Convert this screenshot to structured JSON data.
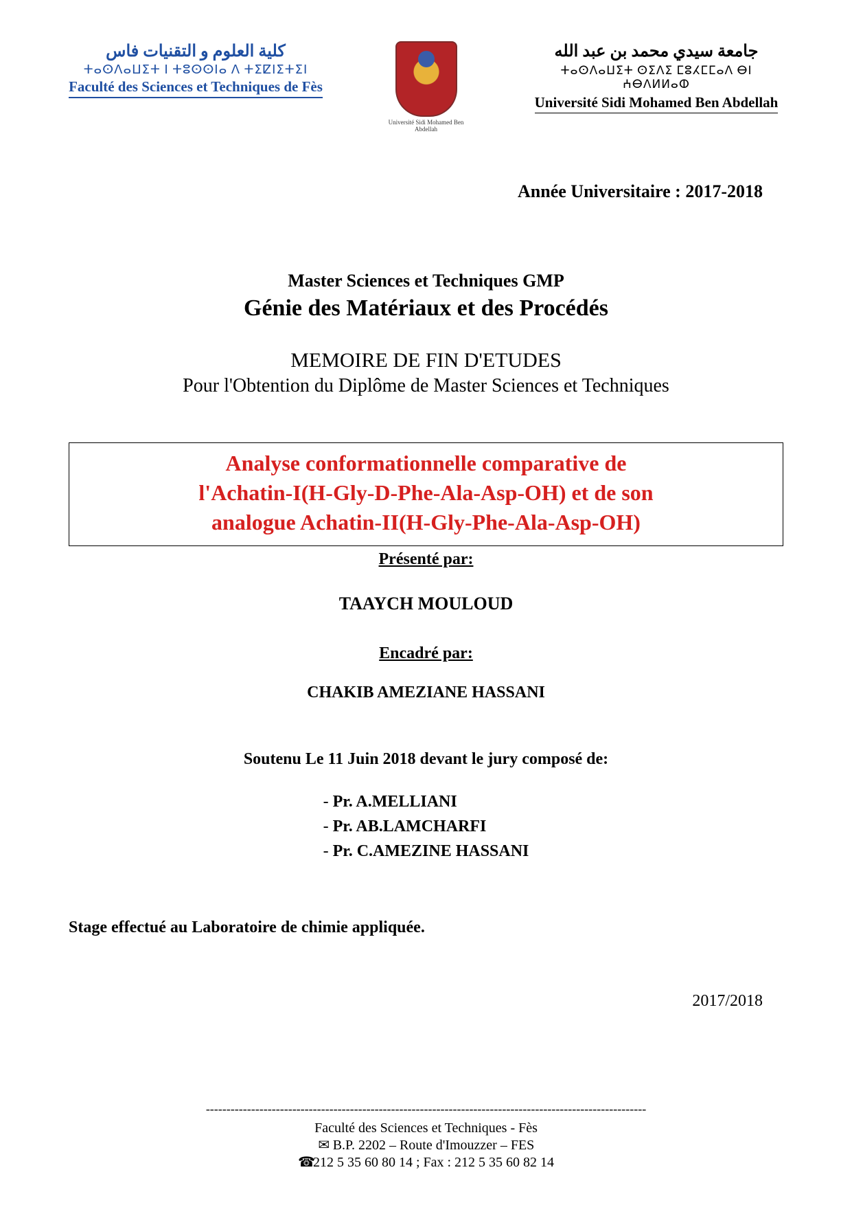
{
  "header": {
    "left": {
      "arabic": "كلية العلوم و التقنيات فاس",
      "tifinagh": "ⵜⴰⵙⴷⴰⵡⵉⵜ ⵏ ⵜⵓⵙⵙⵏⴰ ⴷ ⵜⵉⵇⵏⵉⵜⵉⵏ",
      "french": "Faculté des Sciences et Techniques de Fès"
    },
    "center_caption": "Université Sidi Mohamed Ben Abdellah",
    "right": {
      "arabic": "جامعة سيدي محمد بن عبد الله",
      "tifinagh": "ⵜⴰⵙⴷⴰⵡⵉⵜ ⵙⵉⴷⵉ ⵎⵓⵃⵎⵎⴰⴷ ⴱⵏ ⵄⴱⴷⵍⵍⴰⵀ",
      "french": "Université Sidi Mohamed Ben Abdellah"
    }
  },
  "academic_year": "Année Universitaire : 2017-2018",
  "program_line1": "Master Sciences et Techniques GMP",
  "program_line2": "Génie des Matériaux et des Procédés",
  "memoire_heading": "MEMOIRE DE FIN D'ETUDES",
  "obtention_line": "Pour l'Obtention du Diplôme de Master Sciences et Techniques",
  "thesis_title_line1": "Analyse conformationnelle  comparative de",
  "thesis_title_line2": "l'Achatin-I(H-Gly-D-Phe-Ala-Asp-OH) et de son",
  "thesis_title_line3": "analogue Achatin-II(H-Gly-Phe-Ala-Asp-OH)",
  "presented_by_label": "Présenté par:",
  "author_name": "TAAYCH MOULOUD",
  "supervised_by_label": "Encadré par:",
  "supervisor_name": "CHAKIB AMEZIANE  HASSANI",
  "defense_line": "Soutenu Le 11 Juin 2018  devant le jury composé de:",
  "jury": [
    "Pr. A.MELLIANI",
    "Pr. AB.LAMCHARFI",
    "Pr. C.AMEZINE HASSANI"
  ],
  "stage_line": "Stage effectué au  Laboratoire de chimie appliquée.",
  "year_bottom": "2017/2018",
  "footer": {
    "dashes": "-----------------------------------------------------------------------------------------------------------",
    "line1": "Faculté des Sciences et Techniques -  Fès",
    "line2": "B.P. 2202 – Route d'Imouzzer – FES",
    "line3": "212 5 35 60 80 14 ; Fax : 212 5 35 60 82 14"
  },
  "colors": {
    "header_blue": "#1f4fa2",
    "title_red": "#d6201f",
    "text_black": "#000000",
    "background": "#ffffff"
  },
  "typography": {
    "base_family": "Times New Roman",
    "title_fontsize_pt": 24,
    "body_fontsize_pt": 18
  }
}
